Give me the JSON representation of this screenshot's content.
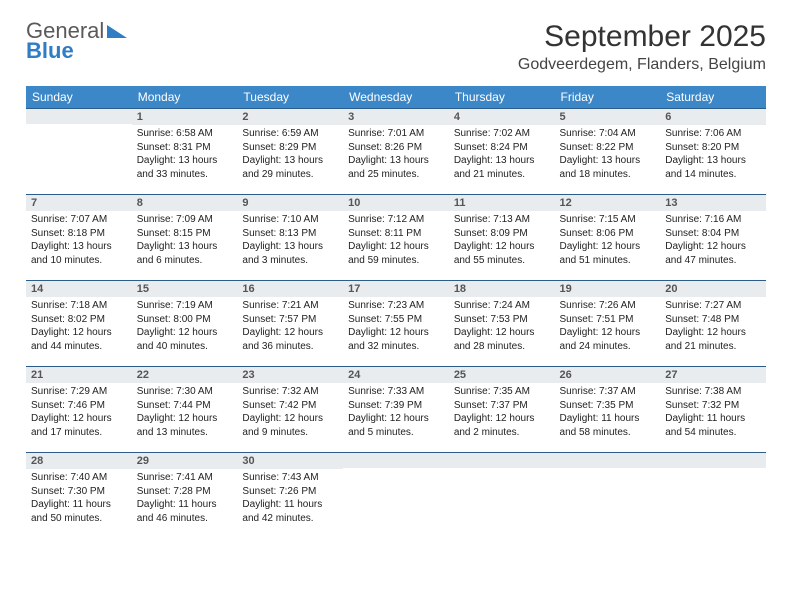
{
  "brand": {
    "line1": "General",
    "line2": "Blue"
  },
  "title": "September 2025",
  "location": "Godveerdegem, Flanders, Belgium",
  "colors": {
    "header_bg": "#3b87c8",
    "header_text": "#ffffff",
    "daynum_bg": "#e9ecef",
    "rule": "#2c5d8a",
    "brand_gray": "#5a5a5a",
    "brand_blue": "#2f7dc4"
  },
  "weekdays": [
    "Sunday",
    "Monday",
    "Tuesday",
    "Wednesday",
    "Thursday",
    "Friday",
    "Saturday"
  ],
  "weeks": [
    [
      {
        "n": "",
        "sr": "",
        "ss": "",
        "dl": ""
      },
      {
        "n": "1",
        "sr": "Sunrise: 6:58 AM",
        "ss": "Sunset: 8:31 PM",
        "dl": "Daylight: 13 hours and 33 minutes."
      },
      {
        "n": "2",
        "sr": "Sunrise: 6:59 AM",
        "ss": "Sunset: 8:29 PM",
        "dl": "Daylight: 13 hours and 29 minutes."
      },
      {
        "n": "3",
        "sr": "Sunrise: 7:01 AM",
        "ss": "Sunset: 8:26 PM",
        "dl": "Daylight: 13 hours and 25 minutes."
      },
      {
        "n": "4",
        "sr": "Sunrise: 7:02 AM",
        "ss": "Sunset: 8:24 PM",
        "dl": "Daylight: 13 hours and 21 minutes."
      },
      {
        "n": "5",
        "sr": "Sunrise: 7:04 AM",
        "ss": "Sunset: 8:22 PM",
        "dl": "Daylight: 13 hours and 18 minutes."
      },
      {
        "n": "6",
        "sr": "Sunrise: 7:06 AM",
        "ss": "Sunset: 8:20 PM",
        "dl": "Daylight: 13 hours and 14 minutes."
      }
    ],
    [
      {
        "n": "7",
        "sr": "Sunrise: 7:07 AM",
        "ss": "Sunset: 8:18 PM",
        "dl": "Daylight: 13 hours and 10 minutes."
      },
      {
        "n": "8",
        "sr": "Sunrise: 7:09 AM",
        "ss": "Sunset: 8:15 PM",
        "dl": "Daylight: 13 hours and 6 minutes."
      },
      {
        "n": "9",
        "sr": "Sunrise: 7:10 AM",
        "ss": "Sunset: 8:13 PM",
        "dl": "Daylight: 13 hours and 3 minutes."
      },
      {
        "n": "10",
        "sr": "Sunrise: 7:12 AM",
        "ss": "Sunset: 8:11 PM",
        "dl": "Daylight: 12 hours and 59 minutes."
      },
      {
        "n": "11",
        "sr": "Sunrise: 7:13 AM",
        "ss": "Sunset: 8:09 PM",
        "dl": "Daylight: 12 hours and 55 minutes."
      },
      {
        "n": "12",
        "sr": "Sunrise: 7:15 AM",
        "ss": "Sunset: 8:06 PM",
        "dl": "Daylight: 12 hours and 51 minutes."
      },
      {
        "n": "13",
        "sr": "Sunrise: 7:16 AM",
        "ss": "Sunset: 8:04 PM",
        "dl": "Daylight: 12 hours and 47 minutes."
      }
    ],
    [
      {
        "n": "14",
        "sr": "Sunrise: 7:18 AM",
        "ss": "Sunset: 8:02 PM",
        "dl": "Daylight: 12 hours and 44 minutes."
      },
      {
        "n": "15",
        "sr": "Sunrise: 7:19 AM",
        "ss": "Sunset: 8:00 PM",
        "dl": "Daylight: 12 hours and 40 minutes."
      },
      {
        "n": "16",
        "sr": "Sunrise: 7:21 AM",
        "ss": "Sunset: 7:57 PM",
        "dl": "Daylight: 12 hours and 36 minutes."
      },
      {
        "n": "17",
        "sr": "Sunrise: 7:23 AM",
        "ss": "Sunset: 7:55 PM",
        "dl": "Daylight: 12 hours and 32 minutes."
      },
      {
        "n": "18",
        "sr": "Sunrise: 7:24 AM",
        "ss": "Sunset: 7:53 PM",
        "dl": "Daylight: 12 hours and 28 minutes."
      },
      {
        "n": "19",
        "sr": "Sunrise: 7:26 AM",
        "ss": "Sunset: 7:51 PM",
        "dl": "Daylight: 12 hours and 24 minutes."
      },
      {
        "n": "20",
        "sr": "Sunrise: 7:27 AM",
        "ss": "Sunset: 7:48 PM",
        "dl": "Daylight: 12 hours and 21 minutes."
      }
    ],
    [
      {
        "n": "21",
        "sr": "Sunrise: 7:29 AM",
        "ss": "Sunset: 7:46 PM",
        "dl": "Daylight: 12 hours and 17 minutes."
      },
      {
        "n": "22",
        "sr": "Sunrise: 7:30 AM",
        "ss": "Sunset: 7:44 PM",
        "dl": "Daylight: 12 hours and 13 minutes."
      },
      {
        "n": "23",
        "sr": "Sunrise: 7:32 AM",
        "ss": "Sunset: 7:42 PM",
        "dl": "Daylight: 12 hours and 9 minutes."
      },
      {
        "n": "24",
        "sr": "Sunrise: 7:33 AM",
        "ss": "Sunset: 7:39 PM",
        "dl": "Daylight: 12 hours and 5 minutes."
      },
      {
        "n": "25",
        "sr": "Sunrise: 7:35 AM",
        "ss": "Sunset: 7:37 PM",
        "dl": "Daylight: 12 hours and 2 minutes."
      },
      {
        "n": "26",
        "sr": "Sunrise: 7:37 AM",
        "ss": "Sunset: 7:35 PM",
        "dl": "Daylight: 11 hours and 58 minutes."
      },
      {
        "n": "27",
        "sr": "Sunrise: 7:38 AM",
        "ss": "Sunset: 7:32 PM",
        "dl": "Daylight: 11 hours and 54 minutes."
      }
    ],
    [
      {
        "n": "28",
        "sr": "Sunrise: 7:40 AM",
        "ss": "Sunset: 7:30 PM",
        "dl": "Daylight: 11 hours and 50 minutes."
      },
      {
        "n": "29",
        "sr": "Sunrise: 7:41 AM",
        "ss": "Sunset: 7:28 PM",
        "dl": "Daylight: 11 hours and 46 minutes."
      },
      {
        "n": "30",
        "sr": "Sunrise: 7:43 AM",
        "ss": "Sunset: 7:26 PM",
        "dl": "Daylight: 11 hours and 42 minutes."
      },
      {
        "n": "",
        "sr": "",
        "ss": "",
        "dl": ""
      },
      {
        "n": "",
        "sr": "",
        "ss": "",
        "dl": ""
      },
      {
        "n": "",
        "sr": "",
        "ss": "",
        "dl": ""
      },
      {
        "n": "",
        "sr": "",
        "ss": "",
        "dl": ""
      }
    ]
  ]
}
